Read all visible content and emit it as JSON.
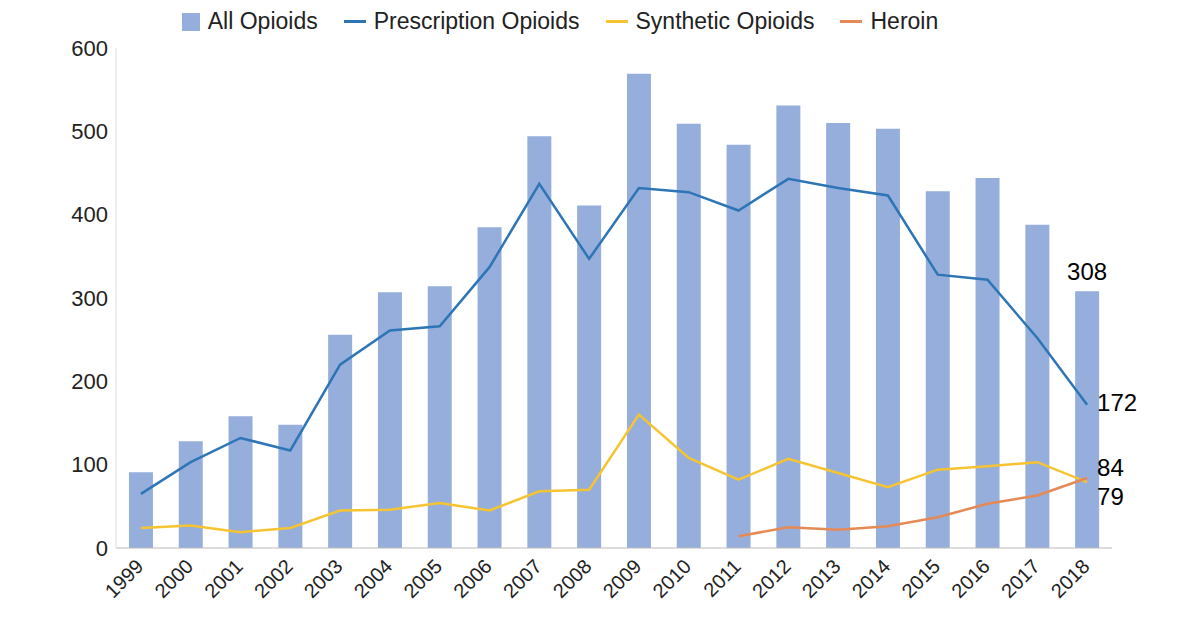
{
  "chart_data": {
    "type": "bar",
    "categories": [
      "1999",
      "2000",
      "2001",
      "2002",
      "2003",
      "2004",
      "2005",
      "2006",
      "2007",
      "2008",
      "2009",
      "2010",
      "2011",
      "2012",
      "2013",
      "2014",
      "2015",
      "2016",
      "2017",
      "2018"
    ],
    "series": [
      {
        "name": "All Opioids",
        "type": "bar",
        "color": "#95aedc",
        "values": [
          91,
          128,
          158,
          148,
          256,
          307,
          314,
          385,
          494,
          411,
          569,
          509,
          484,
          531,
          510,
          503,
          428,
          444,
          388,
          308
        ]
      },
      {
        "name": "Prescription Opioids",
        "type": "line",
        "color": "#2e75b6",
        "values": [
          65,
          103,
          132,
          117,
          220,
          261,
          266,
          337,
          437,
          347,
          432,
          427,
          405,
          443,
          432,
          423,
          328,
          322,
          252,
          172
        ]
      },
      {
        "name": "Synthetic Opioids",
        "type": "line",
        "color": "#f7c431",
        "values": [
          24,
          27,
          19,
          24,
          45,
          46,
          54,
          45,
          68,
          70,
          160,
          108,
          82,
          107,
          90,
          73,
          94,
          98,
          103,
          79
        ]
      },
      {
        "name": "Heroin",
        "type": "line",
        "color": "#e58a55",
        "values": [
          null,
          null,
          null,
          null,
          null,
          null,
          null,
          null,
          null,
          null,
          null,
          null,
          14,
          25,
          22,
          26,
          37,
          53,
          63,
          84
        ]
      }
    ],
    "annotations": [
      {
        "series": "All Opioids",
        "category": "2018",
        "text": "308"
      },
      {
        "series": "Prescription Opioids",
        "category": "2018",
        "text": "172"
      },
      {
        "series": "Heroin",
        "category": "2018",
        "text": "84"
      },
      {
        "series": "Synthetic Opioids",
        "category": "2018",
        "text": "79"
      }
    ],
    "ylim": [
      0,
      600
    ],
    "yticks": [
      0,
      100,
      200,
      300,
      400,
      500,
      600
    ],
    "grid": false,
    "legend": "top"
  }
}
